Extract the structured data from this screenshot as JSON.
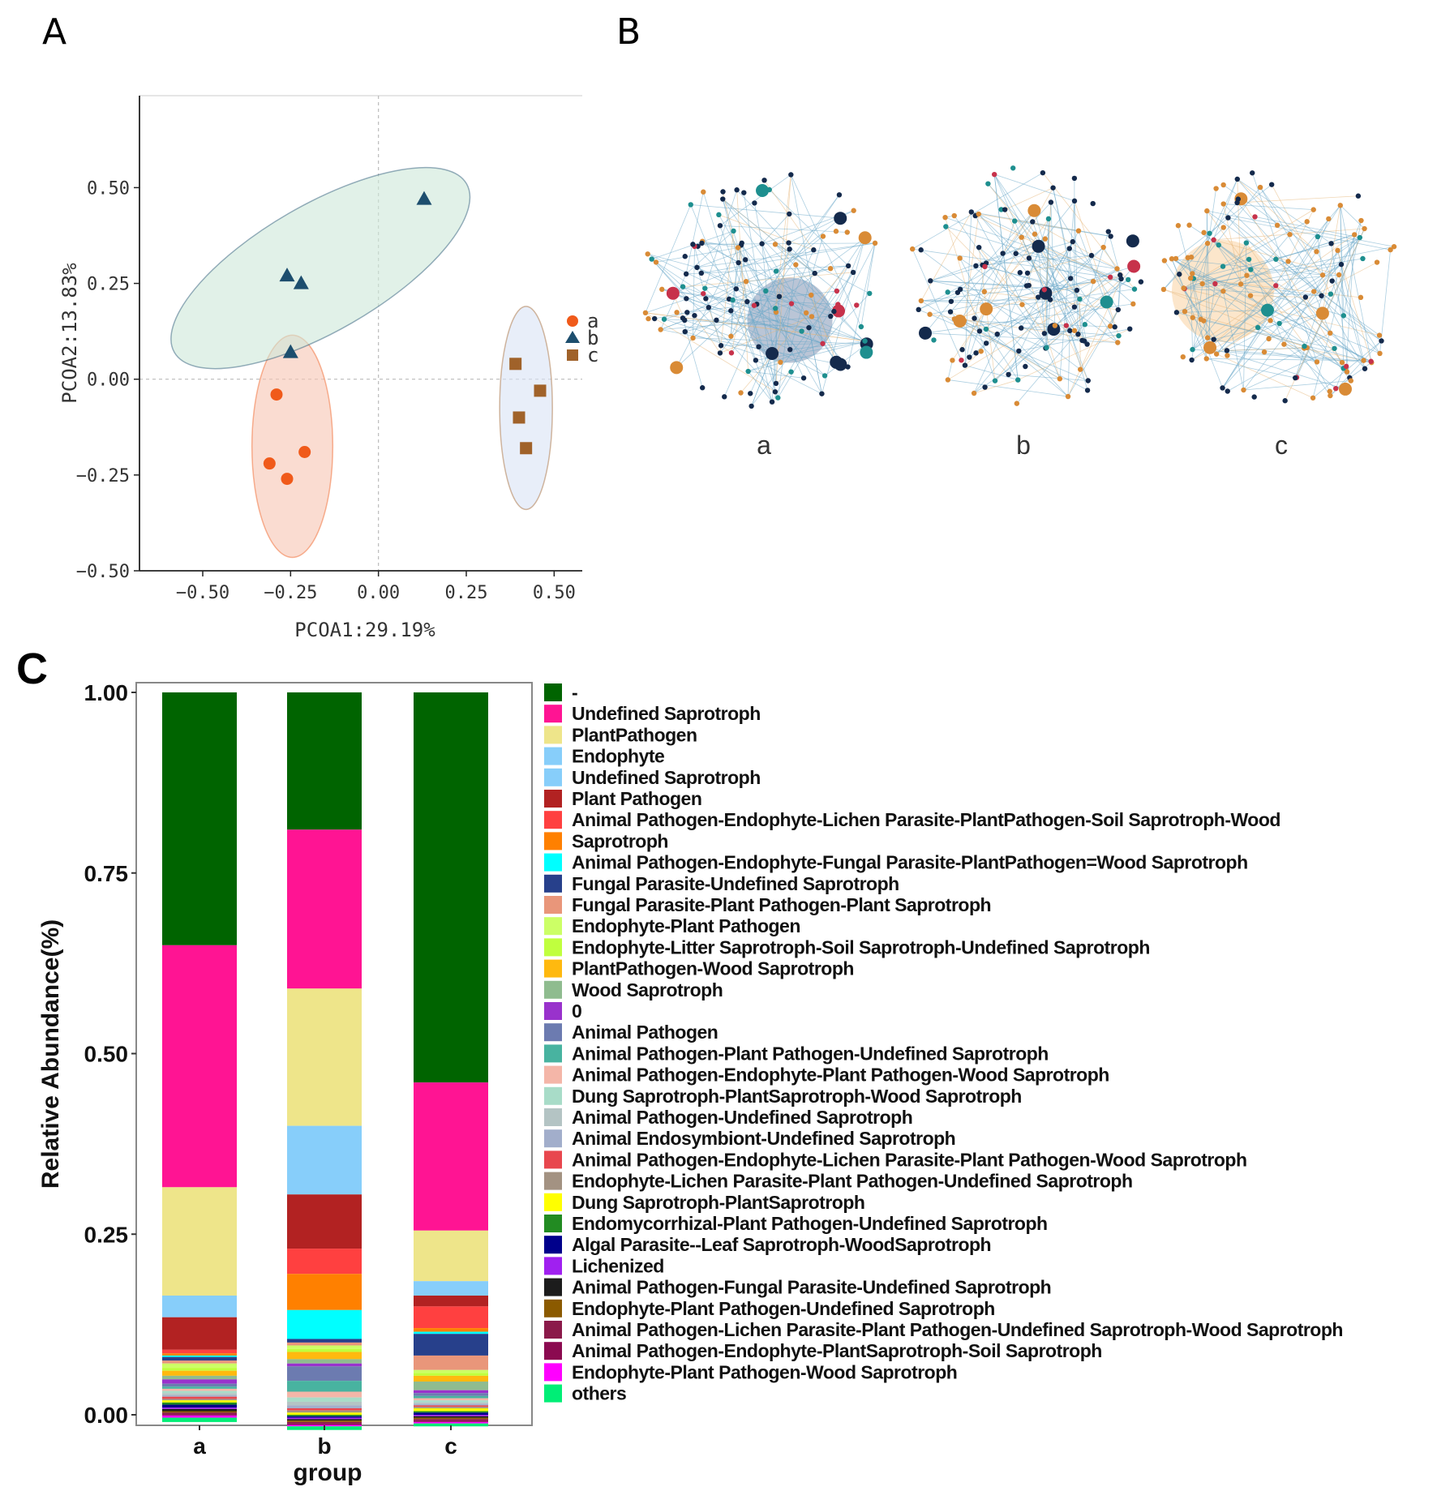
{
  "panels": {
    "A": {
      "letter": "A"
    },
    "B": {
      "letter": "B"
    },
    "C": {
      "letter": "C"
    }
  },
  "chart_data": [
    {
      "type": "scatter",
      "panel": "A",
      "xlabel": "PCOA1:29.19%",
      "ylabel": "PCOA2:13.83%",
      "xlim": [
        -0.68,
        0.58
      ],
      "ylim": [
        -0.5,
        0.74
      ],
      "xticks": [
        -0.5,
        -0.25,
        0.0,
        0.25,
        0.5
      ],
      "xticklabels": [
        "−0.50",
        "−0.25",
        "0.00",
        "0.25",
        "0.50"
      ],
      "yticks": [
        -0.5,
        -0.25,
        0.0,
        0.25,
        0.5
      ],
      "yticklabels": [
        "−0.50",
        "−0.25",
        "0.00",
        "0.25",
        "0.50"
      ],
      "legend_position": "right",
      "series": [
        {
          "name": "a",
          "marker": "circle",
          "color": "#f05a1a",
          "ellipse_color": "#f7c4b2",
          "points": [
            [
              -0.29,
              -0.04
            ],
            [
              -0.31,
              -0.22
            ],
            [
              -0.21,
              -0.19
            ],
            [
              -0.26,
              -0.26
            ]
          ],
          "ellipse": {
            "cx": -0.245,
            "cy": -0.175,
            "rx": 0.115,
            "ry": 0.29,
            "angle": 0
          }
        },
        {
          "name": "b",
          "marker": "triangle",
          "color": "#1d4e6e",
          "ellipse_color": "#cde8d8",
          "points": [
            [
              0.13,
              0.47
            ],
            [
              -0.26,
              0.27
            ],
            [
              -0.22,
              0.25
            ],
            [
              -0.25,
              0.07
            ]
          ],
          "ellipse": {
            "cx": -0.165,
            "cy": 0.29,
            "rx": 0.48,
            "ry": 0.165,
            "angle": -30
          }
        },
        {
          "name": "c",
          "marker": "square",
          "color": "#a0622a",
          "ellipse_color": "#d9e2f5",
          "points": [
            [
              0.39,
              0.04
            ],
            [
              0.46,
              -0.03
            ],
            [
              0.4,
              -0.1
            ],
            [
              0.42,
              -0.18
            ]
          ],
          "ellipse": {
            "cx": 0.42,
            "cy": -0.075,
            "rx": 0.075,
            "ry": 0.265,
            "angle": 0
          }
        }
      ]
    },
    {
      "type": "heatmap",
      "panel": "B",
      "networks": [
        {
          "label": "a",
          "core_color": "#3a5a8a",
          "core": "center-right",
          "core_size": 0.35
        },
        {
          "label": "b",
          "core_color": "#7fb4d0",
          "core": "none",
          "core_size": 0.0
        },
        {
          "label": "c",
          "core_color": "#f5b76a",
          "core": "left",
          "core_size": 0.42
        }
      ],
      "node_colors": [
        "#142a4c",
        "#d98b36",
        "#1e8f8f",
        "#c7324b"
      ]
    },
    {
      "type": "bar",
      "stacked": true,
      "panel": "C",
      "categories": [
        "a",
        "b",
        "c"
      ],
      "xlabel": "group",
      "ylabel": "Relative Abundance(%)",
      "ylim": [
        0,
        1
      ],
      "yticks": [
        0.0,
        0.25,
        0.5,
        0.75,
        1.0
      ],
      "yticklabels": [
        "0.00",
        "0.25",
        "0.50",
        "0.75",
        "1.00"
      ],
      "legend_position": "right",
      "series": [
        {
          "name": "-",
          "color": "#006400",
          "values": [
            0.35,
            0.19,
            0.54
          ]
        },
        {
          "name": "Undefined Saprotroph",
          "color": "#ff1493",
          "values": [
            0.335,
            0.22,
            0.205
          ]
        },
        {
          "name": "PlantPathogen",
          "color": "#eee58a",
          "values": [
            0.15,
            0.19,
            0.07
          ]
        },
        {
          "name": "Endophyte",
          "color": "#87cefa",
          "values": [
            0.03,
            0.095,
            0.02
          ]
        },
        {
          "name": "Undefined Saprotroph",
          "color": "#87cefa",
          "values": [
            0.0,
            0.0,
            0.0
          ]
        },
        {
          "name": "Plant Pathogen",
          "color": "#b22222",
          "values": [
            0.045,
            0.075,
            0.015
          ]
        },
        {
          "name": "Animal Pathogen-Endophyte-Lichen Parasite-PlantPathogen-Soil Saprotroph-Wood",
          "color": "#ff4040",
          "values": [
            0.005,
            0.035,
            0.03
          ]
        },
        {
          "name": "Saprotroph",
          "color": "#ff8000",
          "values": [
            0.003,
            0.05,
            0.005
          ]
        },
        {
          "name": "Animal Pathogen-Endophyte-Fungal Parasite-PlantPathogen=Wood Saprotroph",
          "color": "#00ffff",
          "values": [
            0.002,
            0.04,
            0.003
          ]
        },
        {
          "name": "Fungal Parasite-Undefined Saprotroph",
          "color": "#27408b",
          "values": [
            0.005,
            0.005,
            0.03
          ]
        },
        {
          "name": "Fungal Parasite-Plant Pathogen-Plant Saprotroph",
          "color": "#e9967a",
          "values": [
            0.004,
            0.004,
            0.02
          ]
        },
        {
          "name": "Endophyte-Plant Pathogen",
          "color": "#ccff66",
          "values": [
            0.006,
            0.005,
            0.004
          ]
        },
        {
          "name": "Endophyte-Litter Saprotroph-Soil Saprotroph-Undefined Saprotroph",
          "color": "#c0ff3e",
          "values": [
            0.004,
            0.004,
            0.004
          ]
        },
        {
          "name": "PlantPathogen-Wood Saprotroph",
          "color": "#ffb90f",
          "values": [
            0.007,
            0.01,
            0.008
          ]
        },
        {
          "name": "Wood Saprotroph",
          "color": "#8fbc8f",
          "values": [
            0.005,
            0.006,
            0.012
          ]
        },
        {
          "name": "0",
          "color": "#9932cc",
          "values": [
            0.006,
            0.004,
            0.004
          ]
        },
        {
          "name": "Animal Pathogen",
          "color": "#6c7bb0",
          "values": [
            0.004,
            0.02,
            0.004
          ]
        },
        {
          "name": "Animal Pathogen-Plant Pathogen-Undefined Saprotroph",
          "color": "#48b3a0",
          "values": [
            0.003,
            0.015,
            0.003
          ]
        },
        {
          "name": "Animal Pathogen-Endophyte-Plant Pathogen-Wood Saprotroph",
          "color": "#f4b6a8",
          "values": [
            0.003,
            0.008,
            0.003
          ]
        },
        {
          "name": "Dung Saprotroph-PlantSaprotroph-Wood Saprotroph",
          "color": "#a8dcc8",
          "values": [
            0.003,
            0.006,
            0.003
          ]
        },
        {
          "name": "Animal Pathogen-Undefined Saprotroph",
          "color": "#b4c4c4",
          "values": [
            0.003,
            0.005,
            0.002
          ]
        },
        {
          "name": "Animal Endosymbiont-Undefined Saprotroph",
          "color": "#a2aecb",
          "values": [
            0.002,
            0.004,
            0.002
          ]
        },
        {
          "name": "Animal Pathogen-Endophyte-Lichen Parasite-Plant Pathogen-Wood Saprotroph",
          "color": "#e8474e",
          "values": [
            0.003,
            0.003,
            0.002
          ]
        },
        {
          "name": "Endophyte-Lichen Parasite-Plant Pathogen-Undefined Saprotroph",
          "color": "#a39282",
          "values": [
            0.002,
            0.003,
            0.002
          ]
        },
        {
          "name": "Dung Saprotroph-PlantSaprotroph",
          "color": "#ffff00",
          "values": [
            0.003,
            0.003,
            0.004
          ]
        },
        {
          "name": "Endomycorrhizal-Plant Pathogen-Undefined Saprotroph",
          "color": "#228b22",
          "values": [
            0.003,
            0.002,
            0.002
          ]
        },
        {
          "name": "Algal Parasite--Leaf Saprotroph-WoodSaprotroph",
          "color": "#00008b",
          "values": [
            0.004,
            0.002,
            0.003
          ]
        },
        {
          "name": "Lichenized",
          "color": "#a020f0",
          "values": [
            0.002,
            0.002,
            0.002
          ]
        },
        {
          "name": "Animal Pathogen-Fungal Parasite-Undefined Saprotroph",
          "color": "#1c1c1c",
          "values": [
            0.003,
            0.002,
            0.002
          ]
        },
        {
          "name": "Endophyte-Plant Pathogen-Undefined Saprotroph",
          "color": "#8b5a00",
          "values": [
            0.002,
            0.002,
            0.002
          ]
        },
        {
          "name": "Animal Pathogen-Lichen Parasite-Plant Pathogen-Undefined Saprotroph-Wood Saprotroph",
          "color": "#8b1a4a",
          "values": [
            0.002,
            0.002,
            0.002
          ]
        },
        {
          "name": "Animal Pathogen-Endophyte-PlantSaprotroph-Soil Saprotroph",
          "color": "#8b0a50",
          "values": [
            0.002,
            0.002,
            0.002
          ]
        },
        {
          "name": "Endophyte-Plant Pathogen-Wood Saprotroph",
          "color": "#ff00ff",
          "values": [
            0.003,
            0.002,
            0.002
          ]
        },
        {
          "name": "others",
          "color": "#00ee76",
          "values": [
            0.006,
            0.005,
            0.004
          ]
        }
      ]
    }
  ]
}
